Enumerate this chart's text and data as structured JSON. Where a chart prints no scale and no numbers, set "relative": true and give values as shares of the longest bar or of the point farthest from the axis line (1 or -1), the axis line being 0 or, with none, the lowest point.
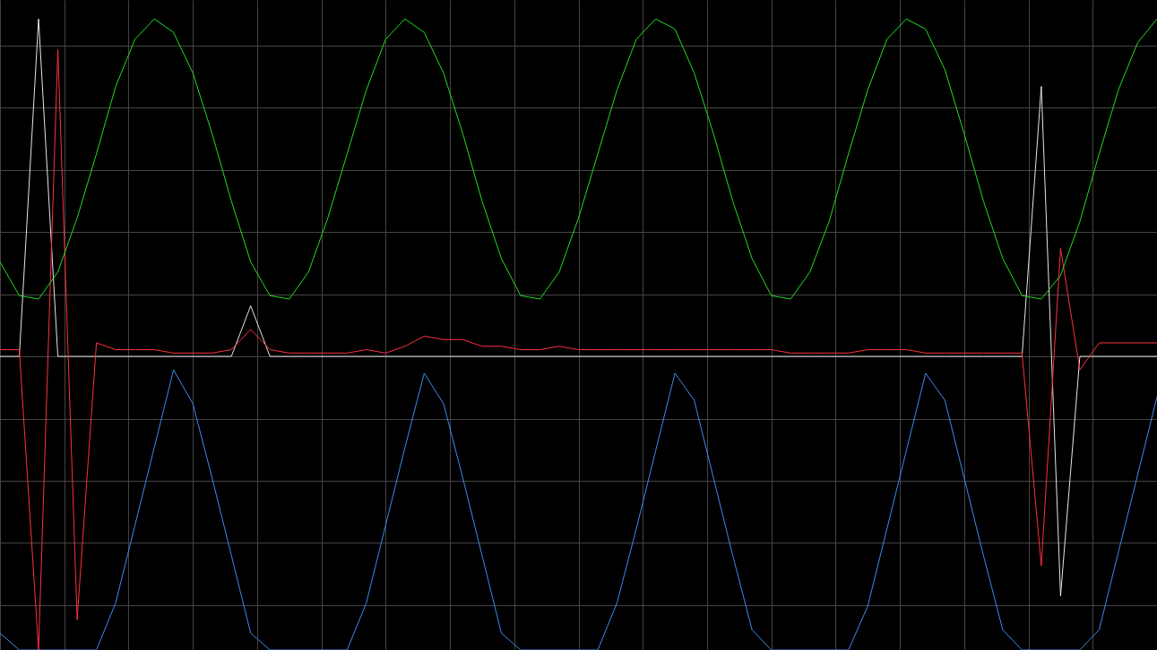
{
  "chart_data": {
    "type": "line",
    "relative": true,
    "grid": true,
    "categories": [
      null,
      null,
      null,
      null,
      null,
      null,
      null,
      null,
      null,
      null,
      null,
      null,
      null,
      null,
      null,
      null,
      null,
      null,
      null,
      null,
      null,
      null,
      null,
      null,
      null,
      null,
      null,
      null,
      null,
      null,
      null,
      null,
      null,
      null,
      null,
      null,
      null,
      null,
      null,
      null,
      null,
      null,
      null,
      null,
      null,
      null,
      null,
      null,
      null,
      null,
      null,
      null,
      null,
      null,
      null,
      null,
      null,
      null,
      null,
      null,
      null
    ],
    "series": [
      {
        "color": "#e6e6e6",
        "values": [
          0,
          0,
          1.0,
          0,
          0,
          0,
          0,
          0,
          0,
          0,
          0,
          0,
          0,
          0.15,
          0,
          0,
          0,
          0,
          0,
          0,
          0,
          0,
          0,
          0,
          0,
          0,
          0,
          0,
          0,
          0,
          0,
          0,
          0,
          0,
          0,
          0,
          0,
          0,
          0,
          0,
          0,
          0,
          0,
          0,
          0,
          0,
          0,
          0,
          0,
          0,
          0,
          0,
          0,
          0,
          0.8,
          -0.71,
          0,
          0,
          0,
          0,
          0
        ]
      },
      {
        "color": "#ff3040",
        "values": [
          0.02,
          0.02,
          -0.87,
          0.91,
          -0.78,
          0.04,
          0.02,
          0.02,
          0.02,
          0.01,
          0.01,
          0.01,
          0.02,
          0.08,
          0.02,
          0.01,
          0.01,
          0.01,
          0.01,
          0.02,
          0.01,
          0.03,
          0.06,
          0.05,
          0.05,
          0.03,
          0.03,
          0.02,
          0.02,
          0.03,
          0.02,
          0.02,
          0.02,
          0.02,
          0.02,
          0.02,
          0.02,
          0.02,
          0.02,
          0.02,
          0.02,
          0.01,
          0.01,
          0.01,
          0.01,
          0.02,
          0.02,
          0.02,
          0.01,
          0.01,
          0.01,
          0.01,
          0.01,
          0.01,
          -0.62,
          0.32,
          -0.04,
          0.04,
          0.04,
          0.04,
          0.04
        ]
      },
      {
        "color": "#22dd22",
        "values": [
          0.28,
          0.18,
          0.17,
          0.25,
          0.41,
          0.6,
          0.8,
          0.94,
          1.0,
          0.96,
          0.84,
          0.66,
          0.46,
          0.28,
          0.18,
          0.17,
          0.25,
          0.41,
          0.6,
          0.79,
          0.94,
          1.0,
          0.96,
          0.84,
          0.66,
          0.46,
          0.29,
          0.18,
          0.17,
          0.25,
          0.41,
          0.6,
          0.79,
          0.94,
          1.0,
          0.97,
          0.84,
          0.66,
          0.46,
          0.29,
          0.18,
          0.17,
          0.25,
          0.4,
          0.6,
          0.79,
          0.94,
          1.0,
          0.97,
          0.85,
          0.66,
          0.46,
          0.29,
          0.18,
          0.17,
          0.24,
          0.4,
          0.6,
          0.79,
          0.93,
          1.0
        ]
      },
      {
        "color": "#3c8cf0",
        "values": [
          -0.82,
          -0.87,
          -0.87,
          -0.87,
          -0.87,
          -0.87,
          -0.73,
          -0.5,
          -0.27,
          -0.04,
          -0.14,
          -0.36,
          -0.59,
          -0.82,
          -0.87,
          -0.87,
          -0.87,
          -0.87,
          -0.87,
          -0.73,
          -0.5,
          -0.27,
          -0.05,
          -0.14,
          -0.36,
          -0.59,
          -0.82,
          -0.87,
          -0.87,
          -0.87,
          -0.87,
          -0.87,
          -0.73,
          -0.51,
          -0.28,
          -0.05,
          -0.13,
          -0.36,
          -0.59,
          -0.81,
          -0.87,
          -0.87,
          -0.87,
          -0.87,
          -0.87,
          -0.74,
          -0.51,
          -0.28,
          -0.05,
          -0.13,
          -0.36,
          -0.59,
          -0.81,
          -0.87,
          -0.87,
          -0.87,
          -0.87,
          -0.81,
          -0.58,
          -0.35,
          -0.12
        ]
      }
    ]
  }
}
